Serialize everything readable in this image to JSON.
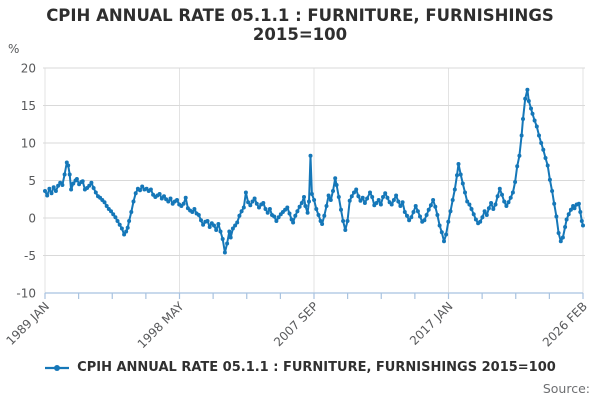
{
  "title": {
    "line1": "CPIH ANNUAL RATE 05.1.1 : FURNITURE, FURNISHINGS",
    "line2": "2015=100"
  },
  "axes": {
    "y_unit": "%",
    "y_tick_labels": [
      "20",
      "15",
      "10",
      "5",
      "0",
      "-5",
      "-10"
    ],
    "y_tick_values": [
      20,
      15,
      10,
      5,
      0,
      -5,
      -10
    ],
    "x_labels": [
      {
        "text": "1989 JAN",
        "tick": 0
      },
      {
        "text": "1998 MAY",
        "tick": 4
      },
      {
        "text": "2007 SEP",
        "tick": 8
      },
      {
        "text": "2017 JAN",
        "tick": 12
      },
      {
        "text": "2026 FEB",
        "tick": 16
      }
    ],
    "minor_tick_count": 17
  },
  "legend": {
    "label": "CPIH ANNUAL RATE 05.1.1 : FURNITURE, FURNISHINGS 2015=100"
  },
  "footer": {
    "source_label": "Source:"
  },
  "colors": {
    "line": "#1577b8",
    "grid": "#d9d9d9",
    "vgrid": "#e3e3e3",
    "axis": "#a8c2e0",
    "tick_text": "#58595b",
    "title_text": "#2e2e2e",
    "source_text": "#6e6f72",
    "background": "#ffffff"
  },
  "chart_data": {
    "type": "line",
    "title": "CPIH ANNUAL RATE 05.1.1 : FURNITURE, FURNISHINGS 2015=100",
    "xlabel": "",
    "ylabel": "%",
    "ylim": [
      -10,
      20
    ],
    "y_gridlines": [
      20,
      15,
      10,
      5,
      0,
      -5
    ],
    "x_range_years": [
      1989.0,
      2026.0833
    ],
    "x_tick_labels": [
      "1989 JAN",
      "1998 MAY",
      "2007 SEP",
      "2017 JAN",
      "2026 FEB"
    ],
    "grid": true,
    "legend_position": "bottom",
    "marker": "circle",
    "series": [
      {
        "name": "CPIH ANNUAL RATE 05.1.1 : FURNITURE, FURNISHINGS 2015=100",
        "color": "#1577b8",
        "points": [
          [
            1989.0,
            3.6
          ],
          [
            1989.15,
            3.0
          ],
          [
            1989.3,
            3.9
          ],
          [
            1989.45,
            3.3
          ],
          [
            1989.6,
            4.1
          ],
          [
            1989.75,
            3.6
          ],
          [
            1989.9,
            4.3
          ],
          [
            1990.05,
            4.7
          ],
          [
            1990.2,
            4.4
          ],
          [
            1990.35,
            5.8
          ],
          [
            1990.5,
            7.4
          ],
          [
            1990.6,
            7.0
          ],
          [
            1990.7,
            5.8
          ],
          [
            1990.8,
            3.8
          ],
          [
            1990.95,
            4.6
          ],
          [
            1991.1,
            5.0
          ],
          [
            1991.2,
            5.2
          ],
          [
            1991.35,
            4.5
          ],
          [
            1991.5,
            4.8
          ],
          [
            1991.6,
            4.9
          ],
          [
            1991.75,
            3.8
          ],
          [
            1991.9,
            4.0
          ],
          [
            1992.05,
            4.3
          ],
          [
            1992.2,
            4.7
          ],
          [
            1992.35,
            4.0
          ],
          [
            1992.5,
            3.4
          ],
          [
            1992.65,
            2.9
          ],
          [
            1992.8,
            2.7
          ],
          [
            1992.95,
            2.4
          ],
          [
            1993.1,
            2.1
          ],
          [
            1993.25,
            1.6
          ],
          [
            1993.4,
            1.2
          ],
          [
            1993.55,
            0.9
          ],
          [
            1993.7,
            0.5
          ],
          [
            1993.85,
            0.1
          ],
          [
            1994.0,
            -0.4
          ],
          [
            1994.15,
            -0.9
          ],
          [
            1994.3,
            -1.4
          ],
          [
            1994.45,
            -2.2
          ],
          [
            1994.6,
            -1.8
          ],
          [
            1994.7,
            -1.3
          ],
          [
            1994.8,
            -0.4
          ],
          [
            1994.95,
            0.8
          ],
          [
            1995.1,
            2.2
          ],
          [
            1995.25,
            3.3
          ],
          [
            1995.4,
            3.9
          ],
          [
            1995.55,
            3.7
          ],
          [
            1995.7,
            4.2
          ],
          [
            1995.85,
            3.8
          ],
          [
            1996.0,
            3.9
          ],
          [
            1996.15,
            3.6
          ],
          [
            1996.3,
            3.8
          ],
          [
            1996.45,
            3.1
          ],
          [
            1996.6,
            2.8
          ],
          [
            1996.75,
            3.0
          ],
          [
            1996.9,
            3.2
          ],
          [
            1997.05,
            2.6
          ],
          [
            1997.2,
            2.9
          ],
          [
            1997.35,
            2.5
          ],
          [
            1997.5,
            2.2
          ],
          [
            1997.65,
            2.6
          ],
          [
            1997.8,
            1.9
          ],
          [
            1997.95,
            2.2
          ],
          [
            1998.1,
            2.4
          ],
          [
            1998.25,
            1.8
          ],
          [
            1998.4,
            1.6
          ],
          [
            1998.55,
            1.9
          ],
          [
            1998.7,
            2.7
          ],
          [
            1998.85,
            1.3
          ],
          [
            1999.0,
            1.0
          ],
          [
            1999.15,
            0.8
          ],
          [
            1999.3,
            1.2
          ],
          [
            1999.45,
            0.6
          ],
          [
            1999.6,
            0.4
          ],
          [
            1999.75,
            -0.3
          ],
          [
            1999.9,
            -0.9
          ],
          [
            2000.05,
            -0.5
          ],
          [
            2000.2,
            -0.4
          ],
          [
            2000.35,
            -1.2
          ],
          [
            2000.5,
            -0.7
          ],
          [
            2000.65,
            -1.0
          ],
          [
            2000.8,
            -1.6
          ],
          [
            2000.95,
            -0.8
          ],
          [
            2001.1,
            -1.8
          ],
          [
            2001.25,
            -2.8
          ],
          [
            2001.4,
            -4.6
          ],
          [
            2001.55,
            -3.4
          ],
          [
            2001.7,
            -1.8
          ],
          [
            2001.8,
            -2.6
          ],
          [
            2001.95,
            -1.4
          ],
          [
            2002.1,
            -1.0
          ],
          [
            2002.25,
            -0.6
          ],
          [
            2002.4,
            0.3
          ],
          [
            2002.55,
            0.9
          ],
          [
            2002.7,
            1.4
          ],
          [
            2002.85,
            3.4
          ],
          [
            2003.0,
            2.1
          ],
          [
            2003.15,
            1.7
          ],
          [
            2003.3,
            2.2
          ],
          [
            2003.45,
            2.6
          ],
          [
            2003.6,
            1.9
          ],
          [
            2003.75,
            1.4
          ],
          [
            2003.9,
            1.8
          ],
          [
            2004.05,
            2.0
          ],
          [
            2004.2,
            1.2
          ],
          [
            2004.35,
            0.7
          ],
          [
            2004.5,
            1.2
          ],
          [
            2004.65,
            0.4
          ],
          [
            2004.8,
            0.2
          ],
          [
            2004.95,
            -0.4
          ],
          [
            2005.1,
            0.1
          ],
          [
            2005.25,
            0.5
          ],
          [
            2005.4,
            0.8
          ],
          [
            2005.55,
            1.1
          ],
          [
            2005.7,
            1.4
          ],
          [
            2005.85,
            0.6
          ],
          [
            2006.0,
            -0.2
          ],
          [
            2006.1,
            -0.6
          ],
          [
            2006.25,
            0.3
          ],
          [
            2006.4,
            0.9
          ],
          [
            2006.55,
            1.5
          ],
          [
            2006.7,
            2.0
          ],
          [
            2006.85,
            2.8
          ],
          [
            2006.95,
            1.6
          ],
          [
            2007.1,
            0.7
          ],
          [
            2007.2,
            2.2
          ],
          [
            2007.3,
            8.3
          ],
          [
            2007.4,
            3.2
          ],
          [
            2007.55,
            2.4
          ],
          [
            2007.7,
            1.2
          ],
          [
            2007.85,
            0.4
          ],
          [
            2008.0,
            -0.4
          ],
          [
            2008.1,
            -0.8
          ],
          [
            2008.25,
            0.3
          ],
          [
            2008.4,
            1.6
          ],
          [
            2008.55,
            3.0
          ],
          [
            2008.7,
            2.4
          ],
          [
            2008.85,
            3.6
          ],
          [
            2009.0,
            5.3
          ],
          [
            2009.1,
            4.4
          ],
          [
            2009.25,
            2.8
          ],
          [
            2009.4,
            1.1
          ],
          [
            2009.55,
            -0.4
          ],
          [
            2009.7,
            -1.6
          ],
          [
            2009.85,
            -0.4
          ],
          [
            2010.0,
            2.3
          ],
          [
            2010.15,
            2.9
          ],
          [
            2010.3,
            3.4
          ],
          [
            2010.45,
            3.8
          ],
          [
            2010.6,
            2.9
          ],
          [
            2010.75,
            2.3
          ],
          [
            2010.9,
            2.7
          ],
          [
            2011.05,
            2.0
          ],
          [
            2011.2,
            2.6
          ],
          [
            2011.4,
            3.4
          ],
          [
            2011.55,
            2.8
          ],
          [
            2011.7,
            1.7
          ],
          [
            2011.85,
            2.0
          ],
          [
            2012.0,
            2.4
          ],
          [
            2012.15,
            1.8
          ],
          [
            2012.3,
            2.8
          ],
          [
            2012.45,
            3.3
          ],
          [
            2012.6,
            2.7
          ],
          [
            2012.75,
            2.1
          ],
          [
            2012.9,
            1.8
          ],
          [
            2013.05,
            2.4
          ],
          [
            2013.2,
            3.0
          ],
          [
            2013.35,
            2.2
          ],
          [
            2013.5,
            1.6
          ],
          [
            2013.65,
            2.1
          ],
          [
            2013.8,
            0.8
          ],
          [
            2013.95,
            0.3
          ],
          [
            2014.1,
            -0.3
          ],
          [
            2014.25,
            0.1
          ],
          [
            2014.4,
            0.8
          ],
          [
            2014.55,
            1.6
          ],
          [
            2014.7,
            0.9
          ],
          [
            2014.85,
            0.2
          ],
          [
            2015.0,
            -0.5
          ],
          [
            2015.15,
            -0.3
          ],
          [
            2015.3,
            0.4
          ],
          [
            2015.45,
            1.1
          ],
          [
            2015.6,
            1.7
          ],
          [
            2015.75,
            2.4
          ],
          [
            2015.9,
            1.5
          ],
          [
            2016.05,
            0.4
          ],
          [
            2016.2,
            -1.0
          ],
          [
            2016.35,
            -1.9
          ],
          [
            2016.5,
            -3.1
          ],
          [
            2016.65,
            -2.2
          ],
          [
            2016.8,
            -0.5
          ],
          [
            2016.95,
            0.9
          ],
          [
            2017.1,
            2.4
          ],
          [
            2017.25,
            3.8
          ],
          [
            2017.4,
            5.7
          ],
          [
            2017.5,
            7.2
          ],
          [
            2017.65,
            5.8
          ],
          [
            2017.8,
            4.6
          ],
          [
            2017.95,
            3.4
          ],
          [
            2018.1,
            2.2
          ],
          [
            2018.25,
            1.8
          ],
          [
            2018.4,
            1.2
          ],
          [
            2018.55,
            0.5
          ],
          [
            2018.7,
            -0.2
          ],
          [
            2018.85,
            -0.7
          ],
          [
            2019.0,
            -0.5
          ],
          [
            2019.15,
            0.1
          ],
          [
            2019.3,
            0.9
          ],
          [
            2019.45,
            0.4
          ],
          [
            2019.6,
            1.3
          ],
          [
            2019.75,
            2.0
          ],
          [
            2019.9,
            1.2
          ],
          [
            2020.05,
            1.8
          ],
          [
            2020.2,
            2.9
          ],
          [
            2020.35,
            3.9
          ],
          [
            2020.5,
            3.1
          ],
          [
            2020.65,
            2.2
          ],
          [
            2020.8,
            1.6
          ],
          [
            2020.95,
            2.1
          ],
          [
            2021.1,
            2.7
          ],
          [
            2021.25,
            3.4
          ],
          [
            2021.4,
            4.8
          ],
          [
            2021.55,
            6.9
          ],
          [
            2021.7,
            8.3
          ],
          [
            2021.85,
            11.0
          ],
          [
            2021.95,
            13.2
          ],
          [
            2022.1,
            15.9
          ],
          [
            2022.25,
            17.1
          ],
          [
            2022.35,
            15.6
          ],
          [
            2022.5,
            14.6
          ],
          [
            2022.6,
            13.9
          ],
          [
            2022.75,
            13.0
          ],
          [
            2022.9,
            12.2
          ],
          [
            2023.05,
            11.0
          ],
          [
            2023.2,
            10.0
          ],
          [
            2023.35,
            9.1
          ],
          [
            2023.5,
            8.0
          ],
          [
            2023.65,
            7.0
          ],
          [
            2023.8,
            5.1
          ],
          [
            2023.95,
            3.6
          ],
          [
            2024.1,
            1.9
          ],
          [
            2024.25,
            0.2
          ],
          [
            2024.4,
            -2.0
          ],
          [
            2024.55,
            -3.1
          ],
          [
            2024.7,
            -2.6
          ],
          [
            2024.85,
            -1.2
          ],
          [
            2024.95,
            -0.2
          ],
          [
            2025.1,
            0.5
          ],
          [
            2025.25,
            1.1
          ],
          [
            2025.4,
            1.6
          ],
          [
            2025.5,
            1.3
          ],
          [
            2025.65,
            1.8
          ],
          [
            2025.8,
            1.9
          ],
          [
            2025.9,
            0.8
          ],
          [
            2026.0,
            -0.4
          ],
          [
            2026.08,
            -1.0
          ]
        ]
      }
    ]
  }
}
